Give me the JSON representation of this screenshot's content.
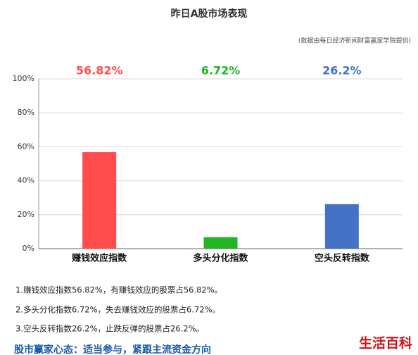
{
  "chart_data": {
    "type": "bar",
    "title": "昨日A股市场表现",
    "subtitle": "(数据由每日经济新闻财富赢家学院提供)",
    "categories": [
      "赚钱效应指数",
      "多头分化指数",
      "空头反转指数"
    ],
    "values": [
      56.82,
      6.72,
      26.2
    ],
    "value_labels": [
      "56.82%",
      "6.72%",
      "26.2%"
    ],
    "colors": [
      "#ff4d4d",
      "#22b422",
      "#4472c4"
    ],
    "ylim": [
      0,
      100
    ],
    "yticks": [
      {
        "value": 0,
        "label": "0%"
      },
      {
        "value": 20,
        "label": "20%"
      },
      {
        "value": 40,
        "label": "40%"
      },
      {
        "value": 60,
        "label": "60%"
      },
      {
        "value": 80,
        "label": "80%"
      },
      {
        "value": 100,
        "label": "100%"
      }
    ],
    "grid": true
  },
  "notes": [
    "1.赚钱效应指数56.82%，有赚钱效应的股票占56.82%。",
    "2.多头分化指数6.72%，失去赚钱效应的股票占6.72%。",
    "3.空头反转指数26.2%，止跌反弹的股票占26.2%。"
  ],
  "heading": "股市赢家心态：适当参与，紧跟主流资金方向",
  "logo": "生活百科"
}
